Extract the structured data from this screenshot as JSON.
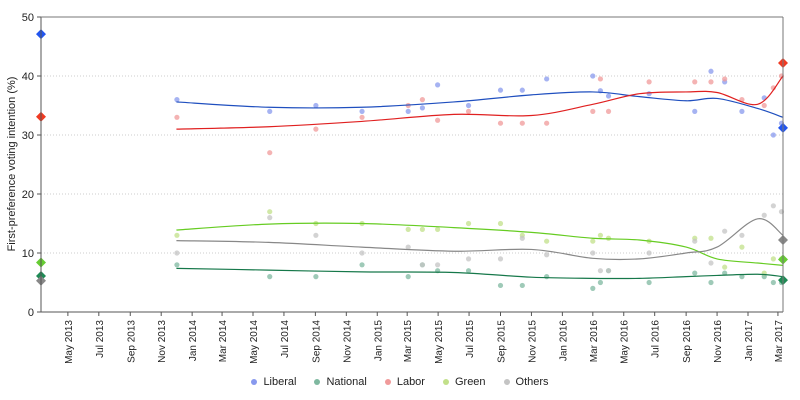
{
  "chart_data": {
    "type": "scatter",
    "title": "",
    "ylabel": "First-preference voting intention (%)",
    "xlabel": "",
    "ylim": [
      0,
      50
    ],
    "yticks": [
      0,
      10,
      20,
      30,
      40,
      50
    ],
    "xlim": [
      "2013-03-09",
      "2017-03-11"
    ],
    "xticks": [
      "May 2013",
      "Jul 2013",
      "Sep 2013",
      "Nov 2013",
      "Jan 2014",
      "Mar 2014",
      "May 2014",
      "Jul 2014",
      "Sep 2014",
      "Nov 2014",
      "Jan 2015",
      "Mar 2015",
      "May 2015",
      "Jul 2015",
      "Sep 2015",
      "Nov 2015",
      "Jan 2016",
      "Mar 2016",
      "May 2016",
      "Jul 2016",
      "Sep 2016",
      "Nov 2016",
      "Jan 2017",
      "Mar 2017"
    ],
    "grid": "horizontal dotted",
    "legend_position": "bottom",
    "series": [
      {
        "name": "Liberal",
        "color": "#1f4fbf",
        "marker_color": "#2255ee",
        "point_color": "#8899ee"
      },
      {
        "name": "National",
        "color": "#16784a",
        "marker_color": "#1f8a55",
        "point_color": "#7fb8a0"
      },
      {
        "name": "Labor",
        "color": "#e02020",
        "marker_color": "#f03a22",
        "point_color": "#f09a9a"
      },
      {
        "name": "Green",
        "color": "#66cc22",
        "marker_color": "#66cc33",
        "point_color": "#c2e08a"
      },
      {
        "name": "Others",
        "color": "#888888",
        "marker_color": "#888888",
        "point_color": "#c4c4c4"
      }
    ],
    "election_results": [
      {
        "date": "2013-03-09",
        "values": [
          47.1,
          6.1,
          33.1,
          8.4,
          5.3
        ]
      },
      {
        "date": "2017-03-11",
        "values": [
          31.2,
          5.4,
          42.2,
          8.9,
          12.2
        ]
      }
    ],
    "polls": [
      {
        "date": "2013-12-02",
        "values": [
          36,
          8,
          33,
          13,
          10
        ]
      },
      {
        "date": "2014-06-03",
        "values": [
          34,
          6,
          27,
          17,
          16
        ]
      },
      {
        "date": "2014-09-02",
        "values": [
          35,
          6,
          31,
          15,
          13
        ]
      },
      {
        "date": "2014-12-02",
        "values": [
          34,
          8,
          33,
          15,
          10
        ]
      },
      {
        "date": "2015-03-03",
        "values": [
          34,
          6,
          35,
          14,
          11
        ]
      },
      {
        "date": "2015-03-31",
        "values": [
          34.6,
          8,
          36,
          14,
          8
        ]
      },
      {
        "date": "2015-04-30",
        "values": [
          38.5,
          7,
          32.5,
          14,
          8
        ]
      },
      {
        "date": "2015-06-30",
        "values": [
          35,
          7,
          34,
          15,
          9
        ]
      },
      {
        "date": "2015-09-01",
        "values": [
          37.6,
          4.5,
          32,
          15,
          9
        ]
      },
      {
        "date": "2015-10-14",
        "values": [
          37.6,
          4.5,
          32,
          13,
          12.5
        ]
      },
      {
        "date": "2015-12-01",
        "values": [
          39.5,
          6,
          32,
          12,
          9.7
        ]
      },
      {
        "date": "2016-03-01",
        "values": [
          40,
          4,
          34,
          12,
          10
        ]
      },
      {
        "date": "2016-03-16",
        "values": [
          37.5,
          5,
          39.5,
          13,
          7
        ]
      },
      {
        "date": "2016-04-01",
        "values": [
          36.6,
          7,
          34,
          12.5,
          7
        ]
      },
      {
        "date": "2016-06-20",
        "values": [
          37,
          5,
          39,
          12,
          10
        ]
      },
      {
        "date": "2016-09-18",
        "values": [
          34,
          6.6,
          39,
          12.5,
          12
        ]
      },
      {
        "date": "2016-10-20",
        "values": [
          40.8,
          5,
          39,
          12.5,
          8.3
        ]
      },
      {
        "date": "2016-11-16",
        "values": [
          39,
          6.6,
          39.5,
          7.6,
          13.7
        ]
      },
      {
        "date": "2016-12-20",
        "values": [
          34,
          6,
          36,
          11,
          13
        ]
      },
      {
        "date": "2017-02-02",
        "values": [
          36.3,
          6,
          35,
          6.6,
          16.4
        ]
      },
      {
        "date": "2017-02-20",
        "values": [
          30,
          5,
          38,
          9,
          18
        ]
      },
      {
        "date": "2017-03-08",
        "values": [
          32,
          5,
          40,
          9,
          17
        ]
      }
    ],
    "trend_dates": [
      "2013-12-01",
      "2014-06-01",
      "2014-12-01",
      "2015-06-01",
      "2015-11-01",
      "2016-03-01",
      "2016-06-01",
      "2016-09-01",
      "2016-11-01",
      "2017-01-20",
      "2017-03-11"
    ],
    "trends": [
      [
        35.6,
        34.7,
        34.7,
        35.6,
        36.8,
        37.3,
        36.5,
        35.8,
        36.2,
        34.5,
        33.0
      ],
      [
        7.4,
        7.1,
        6.8,
        6.7,
        5.9,
        5.7,
        5.7,
        6.0,
        6.2,
        6.4,
        6.0
      ],
      [
        31.0,
        31.4,
        32.3,
        33.5,
        33.3,
        35.2,
        37.0,
        37.3,
        37.2,
        35.2,
        40.0
      ],
      [
        13.9,
        14.9,
        15.0,
        14.3,
        13.5,
        12.5,
        12.2,
        11.0,
        9.0,
        8.3,
        7.9
      ],
      [
        12.1,
        11.8,
        11.0,
        10.3,
        10.6,
        9.1,
        9.0,
        10.0,
        11.0,
        15.8,
        13.0
      ]
    ]
  }
}
